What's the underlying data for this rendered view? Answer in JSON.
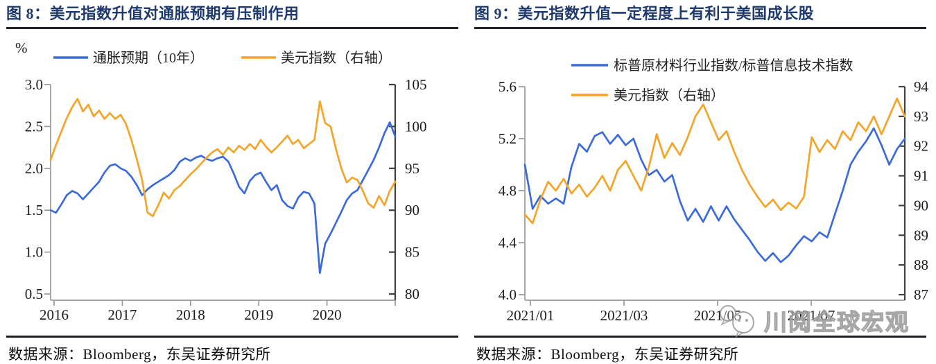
{
  "colors": {
    "title_navy": "#1f3a6d",
    "series_blue": "#3b6bdb",
    "series_orange": "#f4a427",
    "axis_light": "#999999",
    "axis_dark": "#3f3f3f",
    "text_dark": "#1c1c1c"
  },
  "watermark": {
    "text": "川阅全球宏观",
    "icon": "chat-bubbles-icon"
  },
  "figures": [
    {
      "title": "图 8：美元指数升值对通胀预期有压制作用",
      "unit_label": "%",
      "source_note": "数据来源：Bloomberg，东吴证券研究所"
    },
    {
      "title": "图 9：美元指数升值一定程度上有利于美国成长股",
      "unit_label": "",
      "source_note": "数据来源：Bloomberg，东吴证券研究所"
    }
  ],
  "chart_data": [
    {
      "type": "line",
      "title": "美元指数升值对通胀预期有压制作用",
      "ylabel_left": "%",
      "grid": false,
      "legend_position": "top",
      "x_tick_labels": [
        "2016",
        "2017",
        "2018",
        "2019",
        "2020"
      ],
      "left_axis": {
        "min": 0.5,
        "max": 3.0,
        "tick_labels": [
          "3.0",
          "2.5",
          "2.0",
          "1.5",
          "1.0",
          "0.5"
        ]
      },
      "right_axis": {
        "min": 80,
        "max": 105,
        "tick_labels": [
          "105",
          "100",
          "95",
          "90",
          "85",
          "80"
        ]
      },
      "legend": [
        {
          "label": "通胀预期（10年）",
          "color": "series_blue"
        },
        {
          "label": "美元指数（右轴）",
          "color": "series_orange"
        }
      ],
      "series": [
        {
          "name": "通胀预期（10年）",
          "axis": "left",
          "color": "series_blue",
          "values": [
            1.5,
            1.47,
            1.57,
            1.68,
            1.73,
            1.7,
            1.63,
            1.7,
            1.77,
            1.84,
            1.95,
            2.03,
            2.05,
            2.0,
            1.97,
            1.9,
            1.8,
            1.68,
            1.75,
            1.8,
            1.84,
            1.88,
            1.92,
            1.98,
            2.08,
            2.12,
            2.09,
            2.13,
            2.15,
            2.11,
            2.09,
            2.12,
            2.14,
            2.08,
            1.94,
            1.78,
            1.7,
            1.85,
            1.92,
            1.95,
            1.84,
            1.74,
            1.8,
            1.62,
            1.55,
            1.52,
            1.65,
            1.72,
            1.7,
            1.58,
            0.75,
            1.1,
            1.22,
            1.35,
            1.48,
            1.62,
            1.7,
            1.74,
            1.86,
            1.98,
            2.1,
            2.25,
            2.42,
            2.55,
            2.38
          ]
        },
        {
          "name": "美元指数（右轴）",
          "axis": "right",
          "color": "series_orange",
          "values": [
            96.0,
            97.8,
            99.4,
            101.0,
            102.3,
            103.3,
            101.8,
            102.6,
            101.2,
            101.9,
            100.9,
            101.6,
            100.9,
            101.4,
            100.3,
            98.4,
            96.1,
            93.6,
            89.7,
            89.3,
            90.6,
            92.1,
            91.4,
            92.4,
            92.9,
            93.6,
            94.3,
            94.9,
            95.6,
            96.3,
            96.9,
            97.3,
            96.6,
            97.5,
            96.9,
            97.7,
            97.2,
            97.9,
            97.3,
            98.4,
            97.6,
            96.9,
            97.5,
            98.2,
            98.9,
            97.9,
            98.4,
            97.4,
            97.9,
            98.4,
            103.0,
            100.4,
            100.0,
            97.3,
            95.0,
            93.3,
            93.9,
            93.6,
            92.3,
            90.8,
            90.3,
            91.7,
            90.6,
            92.3,
            93.4
          ]
        }
      ]
    },
    {
      "type": "line",
      "title": "美元指数升值一定程度上有利于美国成长股",
      "ylabel_left": "",
      "grid": false,
      "legend_position": "top",
      "x_tick_labels": [
        "2021/01",
        "2021/03",
        "2021/05",
        "2021/07"
      ],
      "left_axis": {
        "min": 4.0,
        "max": 5.6,
        "tick_labels": [
          "5.6",
          "5.2",
          "4.8",
          "4.4",
          "4.0"
        ]
      },
      "right_axis": {
        "min": 87,
        "max": 94,
        "tick_labels": [
          "94",
          "93",
          "92",
          "91",
          "90",
          "89",
          "88",
          "87"
        ]
      },
      "legend": [
        {
          "label": "标普原材料行业指数/标普信息技术指数",
          "color": "series_blue"
        },
        {
          "label": "美元指数（右轴）",
          "color": "series_orange"
        }
      ],
      "series": [
        {
          "name": "标普原材料行业指数/标普信息技术指数",
          "axis": "left",
          "color": "series_blue",
          "values": [
            5.0,
            4.66,
            4.76,
            4.7,
            4.74,
            4.7,
            4.98,
            5.16,
            5.1,
            5.22,
            5.25,
            5.16,
            5.23,
            5.15,
            5.2,
            5.04,
            4.92,
            4.96,
            4.87,
            4.92,
            4.72,
            4.57,
            4.66,
            4.56,
            4.68,
            4.57,
            4.68,
            4.58,
            4.5,
            4.42,
            4.33,
            4.26,
            4.32,
            4.25,
            4.3,
            4.38,
            4.45,
            4.41,
            4.48,
            4.44,
            4.62,
            4.8,
            5.0,
            5.1,
            5.18,
            5.28,
            5.15,
            5.0,
            5.12,
            5.2
          ]
        },
        {
          "name": "美元指数（右轴）",
          "axis": "right",
          "color": "series_orange",
          "values": [
            89.7,
            89.4,
            90.2,
            90.8,
            90.5,
            90.9,
            90.4,
            90.7,
            90.3,
            90.6,
            91.0,
            90.5,
            91.2,
            91.5,
            91.0,
            90.5,
            91.3,
            92.4,
            91.6,
            92.1,
            91.7,
            92.3,
            93.0,
            93.4,
            92.8,
            92.2,
            92.5,
            91.8,
            91.2,
            90.7,
            90.3,
            89.95,
            90.2,
            89.85,
            90.1,
            89.9,
            90.3,
            92.3,
            91.8,
            92.2,
            91.9,
            92.5,
            92.2,
            92.8,
            92.5,
            93.0,
            92.4,
            93.0,
            93.6,
            93.0
          ]
        }
      ]
    }
  ]
}
